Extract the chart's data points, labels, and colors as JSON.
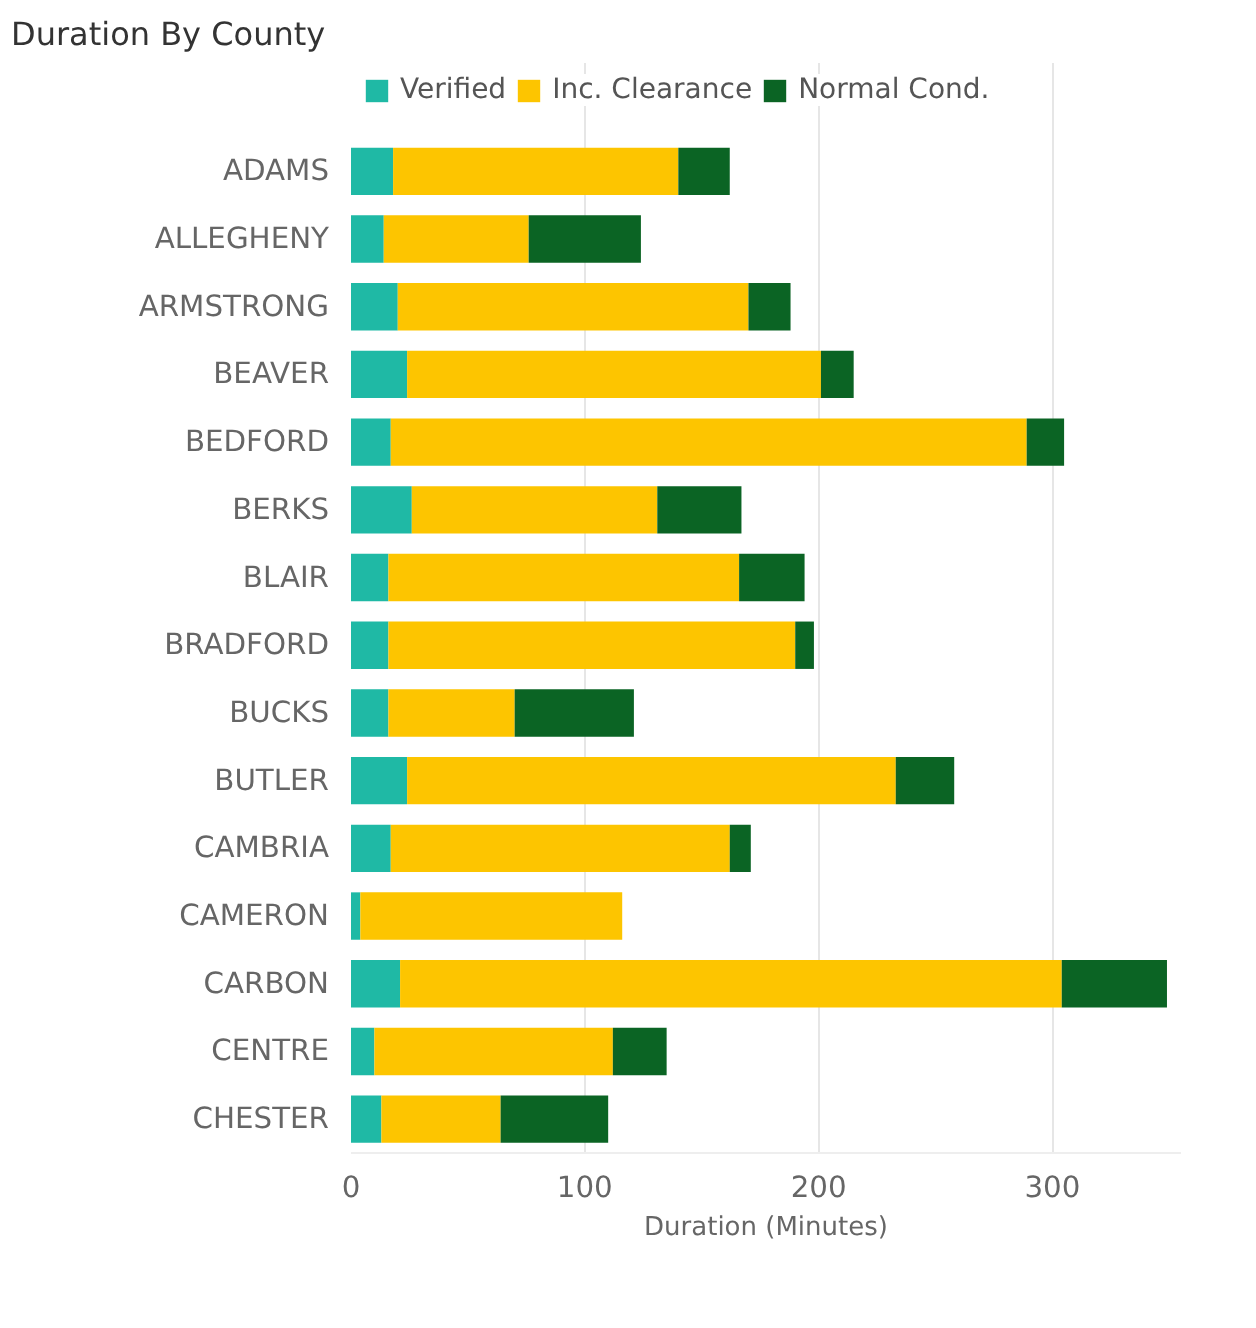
{
  "chart_data": {
    "type": "bar",
    "orientation": "horizontal",
    "stacked": true,
    "title": "Duration By County",
    "xlabel": "Duration (Minutes)",
    "categories": [
      "ADAMS",
      "ALLEGHENY",
      "ARMSTRONG",
      "BEAVER",
      "BEDFORD",
      "BERKS",
      "BLAIR",
      "BRADFORD",
      "BUCKS",
      "BUTLER",
      "CAMBRIA",
      "CAMERON",
      "CARBON",
      "CENTRE",
      "CHESTER"
    ],
    "series": [
      {
        "name": "Verified",
        "color": "#1fb9a5",
        "values": [
          18,
          14,
          20,
          24,
          17,
          26,
          16,
          16,
          16,
          24,
          17,
          4,
          21,
          10,
          13
        ]
      },
      {
        "name": "Inc. Clearance",
        "color": "#fdc500",
        "values": [
          122,
          62,
          150,
          177,
          272,
          105,
          150,
          174,
          54,
          209,
          145,
          112,
          283,
          102,
          51
        ]
      },
      {
        "name": "Normal Cond.",
        "color": "#0b6424",
        "values": [
          22,
          48,
          18,
          14,
          16,
          36,
          28,
          8,
          51,
          25,
          9,
          0,
          45,
          23,
          46
        ]
      }
    ],
    "xlim": [
      0,
      355
    ],
    "xticks": [
      0,
      100,
      200,
      300
    ],
    "grid": "x",
    "legend": "top left"
  }
}
